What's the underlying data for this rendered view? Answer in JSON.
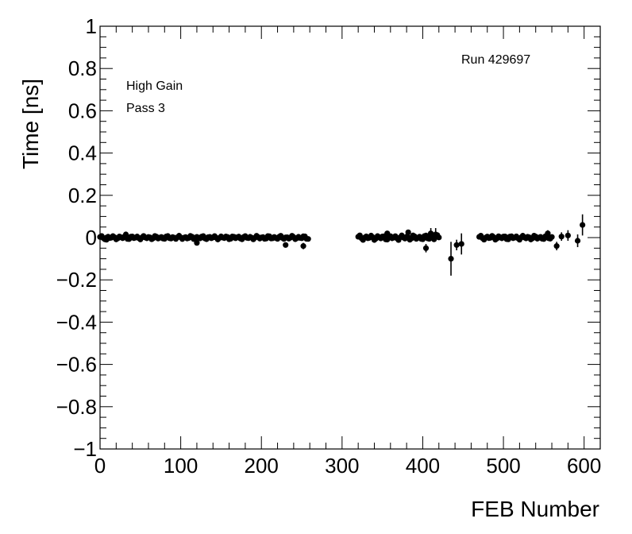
{
  "chart_data": {
    "type": "scatter",
    "title": "",
    "xlabel": "FEB Number",
    "ylabel": "Time [ns]",
    "xlim": [
      0,
      620
    ],
    "ylim": [
      -1,
      1
    ],
    "x_ticks": [
      0,
      100,
      200,
      300,
      400,
      500,
      600
    ],
    "x_tick_labels": [
      "0",
      "100",
      "200",
      "300",
      "400",
      "500",
      "600"
    ],
    "y_ticks": [
      -1,
      -0.8,
      -0.6,
      -0.4,
      -0.2,
      0,
      0.2,
      0.4,
      0.6,
      0.8,
      1
    ],
    "y_tick_labels": [
      "−1",
      "−0.8",
      "−0.6",
      "−0.4",
      "−0.2",
      "0",
      "0.2",
      "0.4",
      "0.6",
      "0.8",
      "1"
    ],
    "annotations": {
      "gain": "High Gain",
      "pass": "Pass 3",
      "run": "Run 429697"
    },
    "grid": false,
    "marker_color": "#000000",
    "series": [
      {
        "segments": [
          {
            "x_start": 0,
            "x_end": 258,
            "step": 2,
            "y": 0.0,
            "spread": 0.006,
            "err": 0.01
          },
          {
            "x_start": 320,
            "x_end": 420,
            "step": 2,
            "y": 0.0,
            "spread": 0.008,
            "err": 0.012
          },
          {
            "x_start": 470,
            "x_end": 560,
            "step": 2,
            "y": 0.0,
            "spread": 0.007,
            "err": 0.01
          }
        ],
        "points": [
          {
            "x": 8,
            "y": -0.01,
            "err": 0.01
          },
          {
            "x": 32,
            "y": 0.015,
            "err": 0.01
          },
          {
            "x": 120,
            "y": -0.025,
            "err": 0.01
          },
          {
            "x": 230,
            "y": -0.035,
            "err": 0.012
          },
          {
            "x": 252,
            "y": -0.04,
            "err": 0.015
          },
          {
            "x": 356,
            "y": 0.02,
            "err": 0.012
          },
          {
            "x": 382,
            "y": 0.025,
            "err": 0.012
          },
          {
            "x": 404,
            "y": -0.05,
            "err": 0.02
          },
          {
            "x": 410,
            "y": 0.02,
            "err": 0.025
          },
          {
            "x": 416,
            "y": 0.015,
            "err": 0.03
          },
          {
            "x": 435,
            "y": -0.1,
            "err": 0.08
          },
          {
            "x": 442,
            "y": -0.035,
            "err": 0.025
          },
          {
            "x": 448,
            "y": -0.03,
            "err": 0.05
          },
          {
            "x": 555,
            "y": 0.02,
            "err": 0.015
          },
          {
            "x": 566,
            "y": -0.04,
            "err": 0.02
          },
          {
            "x": 572,
            "y": 0.005,
            "err": 0.02
          },
          {
            "x": 580,
            "y": 0.01,
            "err": 0.025
          },
          {
            "x": 592,
            "y": -0.015,
            "err": 0.03
          },
          {
            "x": 598,
            "y": 0.06,
            "err": 0.05
          }
        ]
      }
    ]
  }
}
